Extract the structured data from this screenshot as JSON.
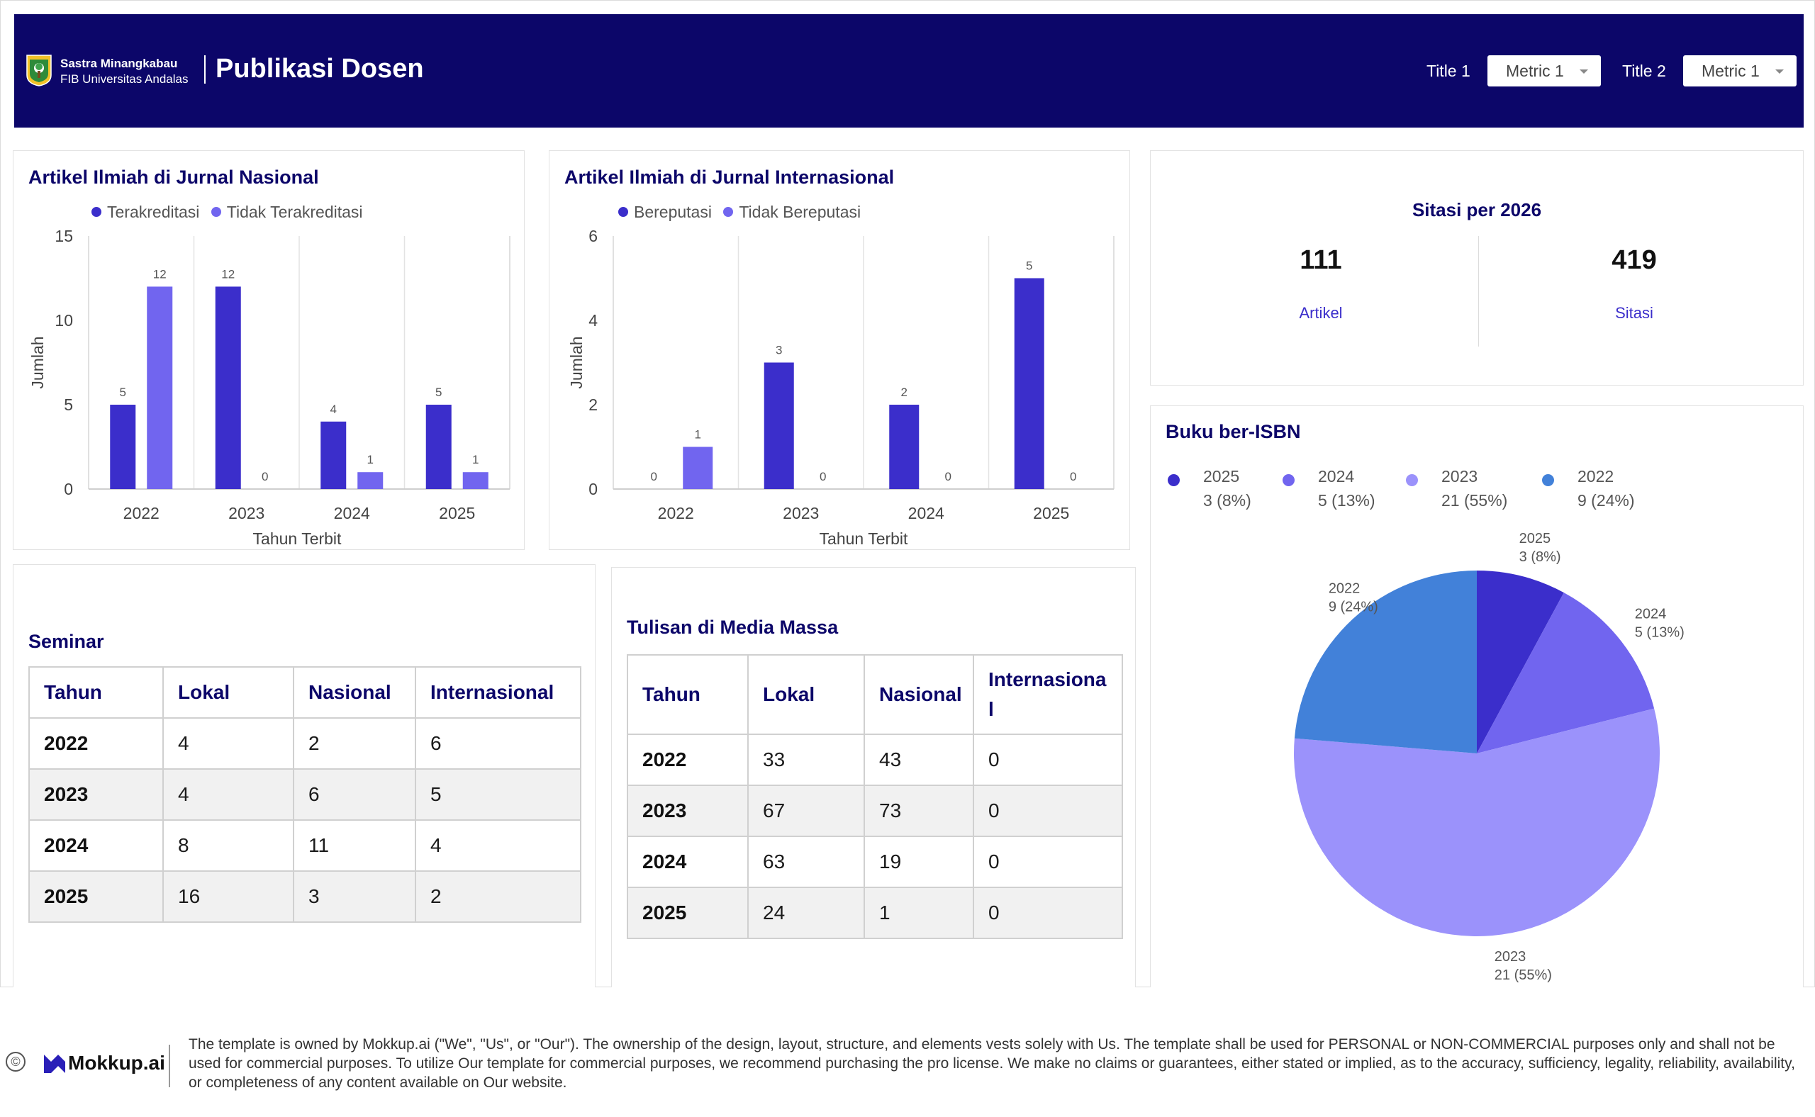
{
  "header": {
    "brand_line1": "Sastra Minangkabau",
    "brand_line2": "FIB Universitas Andalas",
    "title": "Publikasi Dosen",
    "filter1_label": "Title 1",
    "filter1_value": "Metric 1",
    "filter2_label": "Title 2",
    "filter2_value": "Metric 1"
  },
  "colors": {
    "header_bg": "#0c0669",
    "series_dark": "#3b2ecb",
    "series_light": "#7165ef",
    "pie_2023": "#9b92fb",
    "pie_2022": "#4281d9"
  },
  "chart_nasional": {
    "title": "Artikel Ilmiah di Jurnal Nasional",
    "chart_data": {
      "type": "bar",
      "categories": [
        "2022",
        "2023",
        "2024",
        "2025"
      ],
      "series": [
        {
          "name": "Terakreditasi",
          "values": [
            5,
            12,
            4,
            5
          ]
        },
        {
          "name": "Tidak Terakreditasi",
          "values": [
            12,
            0,
            1,
            1
          ]
        }
      ],
      "xlabel": "Tahun Terbit",
      "ylabel": "Jumlah",
      "ylim": [
        0,
        15
      ],
      "yticks": [
        "0",
        "5",
        "10",
        "15"
      ],
      "legend": "top"
    }
  },
  "chart_internasional": {
    "title": "Artikel Ilmiah di Jurnal Internasional",
    "chart_data": {
      "type": "bar",
      "categories": [
        "2022",
        "2023",
        "2024",
        "2025"
      ],
      "series": [
        {
          "name": "Bereputasi",
          "values": [
            0,
            3,
            2,
            5
          ]
        },
        {
          "name": "Tidak Bereputasi",
          "values": [
            1,
            0,
            0,
            0
          ]
        }
      ],
      "xlabel": "Tahun Terbit",
      "ylabel": "Jumlah",
      "ylim": [
        0,
        6
      ],
      "yticks": [
        "0",
        "2",
        "4",
        "6"
      ],
      "legend": "top"
    }
  },
  "sitasi": {
    "title": "Sitasi per 2026",
    "artikel_value": "111",
    "artikel_label": "Artikel",
    "sitasi_value": "419",
    "sitasi_label": "Sitasi"
  },
  "buku": {
    "title": "Buku ber-ISBN",
    "chart_data": {
      "type": "pie",
      "slices": [
        {
          "label": "2025",
          "value": 3,
          "percent": "3 (8%)"
        },
        {
          "label": "2024",
          "value": 5,
          "percent": "5 (13%)"
        },
        {
          "label": "2023",
          "value": 21,
          "percent": "21 (55%)"
        },
        {
          "label": "2022",
          "value": 9,
          "percent": "9 (24%)"
        }
      ],
      "legend": "top"
    }
  },
  "seminar": {
    "title": "Seminar",
    "headers": [
      "Tahun",
      "Lokal",
      "Nasional",
      "Internasional"
    ],
    "rows": [
      [
        "2022",
        "4",
        "2",
        "6"
      ],
      [
        "2023",
        "4",
        "6",
        "5"
      ],
      [
        "2024",
        "8",
        "11",
        "4"
      ],
      [
        "2025",
        "16",
        "3",
        "2"
      ]
    ]
  },
  "media": {
    "title": "Tulisan di Media Massa",
    "headers": [
      "Tahun",
      "Lokal",
      "Nasional",
      "Internasiona\nl"
    ],
    "rows": [
      [
        "2022",
        "33",
        "43",
        "0"
      ],
      [
        "2023",
        "67",
        "73",
        "0"
      ],
      [
        "2024",
        "63",
        "19",
        "0"
      ],
      [
        "2025",
        "24",
        "1",
        "0"
      ]
    ]
  },
  "footer": {
    "copyright_symbol": "©",
    "brand": "Mokkup.ai",
    "disclaimer": "The template is owned by Mokkup.ai (\"We\", \"Us\", or \"Our\"). The ownership of the design, layout, structure, and elements vests solely with Us. The template shall be used for PERSONAL or NON-COMMERCIAL purposes only and shall not be used for commercial purposes. To utilize Our template for commercial purposes, we recommend purchasing the pro license. We make no claims or guarantees, either stated or implied, as to the accuracy, sufficiency, legality, reliability, availability, or completeness of any content available on Our website."
  }
}
